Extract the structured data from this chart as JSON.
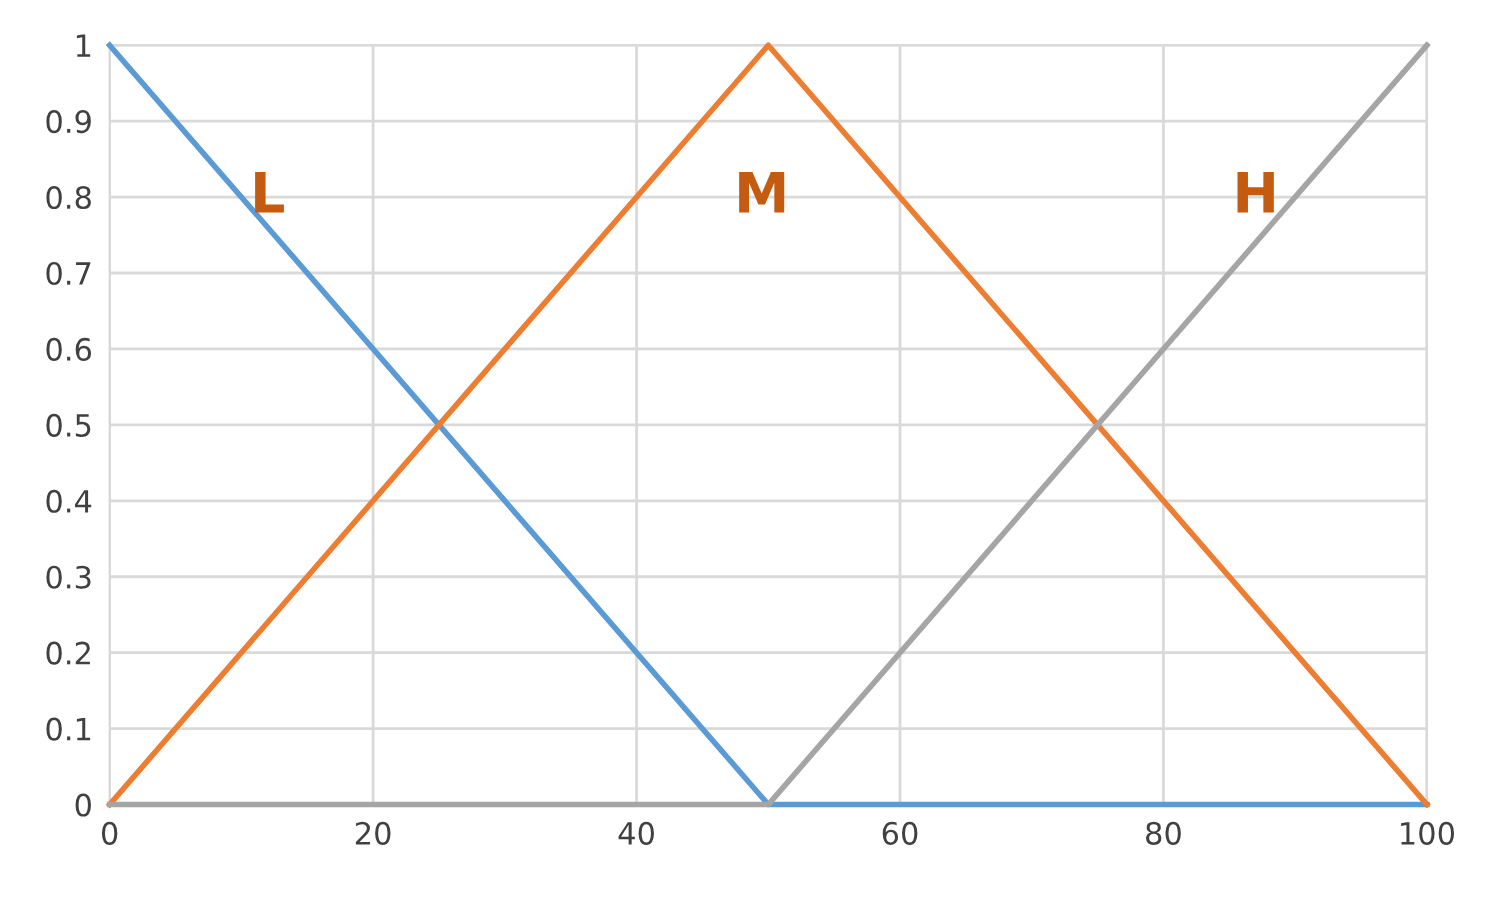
{
  "chart_data": {
    "type": "line",
    "series": [
      {
        "color": "#5b9bd5",
        "x": [
          0,
          50,
          100
        ],
        "values": [
          1,
          0,
          0
        ]
      },
      {
        "color": "#ed7d31",
        "x": [
          0,
          50,
          100
        ],
        "values": [
          0,
          1,
          0
        ]
      },
      {
        "color": "#a5a5a5",
        "x": [
          0,
          50,
          100
        ],
        "values": [
          0,
          0,
          1
        ]
      }
    ],
    "xlim": [
      0,
      100
    ],
    "xticks": [
      0,
      20,
      40,
      60,
      80,
      100
    ],
    "ylim": [
      0,
      1
    ],
    "yticks": [
      0,
      0.1,
      0.2,
      0.3,
      0.4,
      0.5,
      0.6,
      0.7,
      0.8,
      0.9,
      1
    ],
    "grid": true,
    "marker": "none",
    "line_style": "solid",
    "annotations": [
      "L",
      "M",
      "H"
    ]
  }
}
